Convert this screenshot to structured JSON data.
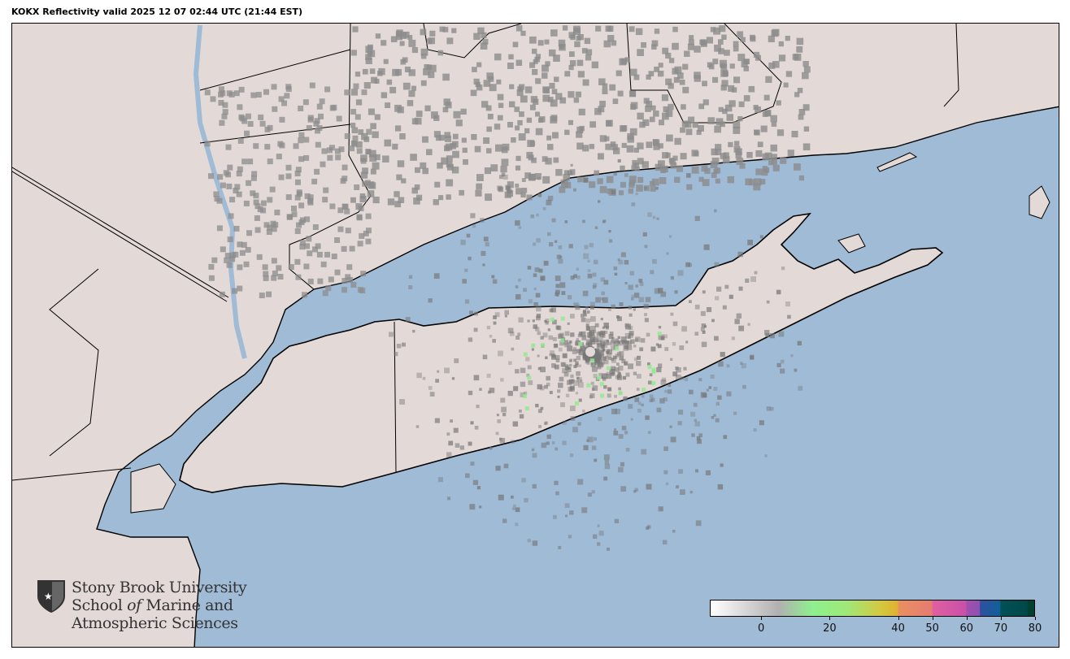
{
  "title": "KOKX Reflectivity valid 2025 12 07 02:44 UTC (21:44 EST)",
  "colors": {
    "ocean": "#9fbbd6",
    "land": "#e3d9d6",
    "lakes": "#9fbbd6",
    "borders": "#000000",
    "radar_low": "#8c8c8c",
    "radar_green": "#8ee88e"
  },
  "logo": {
    "line1": "Stony Brook University",
    "line2a": "School ",
    "line2b": "of",
    "line2c": " Marine and",
    "line3": "Atmospheric Sciences",
    "icon": "shield-star-icon"
  },
  "colorbar": {
    "units_min": -15,
    "units_max": 80,
    "ticks": [
      {
        "value": 0,
        "label": "0"
      },
      {
        "value": 20,
        "label": "20"
      },
      {
        "value": 40,
        "label": "40"
      },
      {
        "value": 50,
        "label": "50"
      },
      {
        "value": 60,
        "label": "60"
      },
      {
        "value": 70,
        "label": "70"
      },
      {
        "value": 80,
        "label": "80"
      }
    ],
    "stops": [
      {
        "value": -15,
        "color": "#ffffff"
      },
      {
        "value": 5,
        "color": "#b0b0b0"
      },
      {
        "value": 15,
        "color": "#8ef08e"
      },
      {
        "value": 25,
        "color": "#9fe878"
      },
      {
        "value": 35,
        "color": "#d4c840"
      },
      {
        "value": 40,
        "color": "#e0b030"
      },
      {
        "value": 40.1,
        "color": "#e89060"
      },
      {
        "value": 50,
        "color": "#e67c70"
      },
      {
        "value": 50.1,
        "color": "#e060a0"
      },
      {
        "value": 60,
        "color": "#c850a8"
      },
      {
        "value": 60.1,
        "color": "#a050b0"
      },
      {
        "value": 64,
        "color": "#9050b0"
      },
      {
        "value": 64.1,
        "color": "#3050a0"
      },
      {
        "value": 70,
        "color": "#106098"
      },
      {
        "value": 70.1,
        "color": "#005058"
      },
      {
        "value": 78,
        "color": "#004848"
      },
      {
        "value": 78.1,
        "color": "#004030"
      },
      {
        "value": 80,
        "color": "#004030"
      }
    ]
  }
}
